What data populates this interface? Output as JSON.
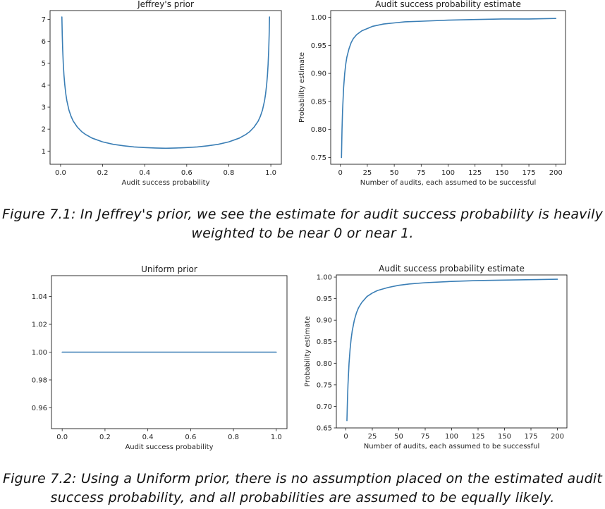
{
  "captions": {
    "fig1": "Figure 7.1: In Jeffrey's prior, we see the estimate for audit success probability is heavily weighted to be near 0 or near 1.",
    "fig2": "Figure 7.2: Using a Uniform prior, there is no assumption placed on the estimated audit success probability, and all probabilities are assumed to be equally likely."
  },
  "chart_data": [
    {
      "type": "line",
      "title": "Jeffrey's prior",
      "xlabel": "Audit success probability",
      "ylabel": "",
      "xlim": [
        -0.05,
        1.05
      ],
      "ylim": [
        0.4,
        7.4
      ],
      "xticks": [
        "0.0",
        "0.2",
        "0.4",
        "0.6",
        "0.8",
        "1.0"
      ],
      "yticks": [
        "1",
        "2",
        "3",
        "4",
        "5",
        "6",
        "7"
      ],
      "line_color": "#3a7eb5",
      "series": [
        {
          "x": [
            0.00625,
            0.008,
            0.01,
            0.013,
            0.016,
            0.02,
            0.025,
            0.03,
            0.04,
            0.05,
            0.06,
            0.08,
            0.1,
            0.12,
            0.15,
            0.2,
            0.25,
            0.3,
            0.35,
            0.4,
            0.45,
            0.5,
            0.55,
            0.6,
            0.65,
            0.7,
            0.75,
            0.8,
            0.85,
            0.88,
            0.9,
            0.92,
            0.94,
            0.95,
            0.96,
            0.97,
            0.975,
            0.98,
            0.984,
            0.987,
            0.99,
            0.992,
            0.99375
          ],
          "y": [
            7.11,
            6.29,
            5.63,
            4.95,
            4.47,
            4.02,
            3.6,
            3.29,
            2.86,
            2.58,
            2.37,
            2.09,
            1.89,
            1.75,
            1.59,
            1.42,
            1.31,
            1.24,
            1.19,
            1.16,
            1.14,
            1.13,
            1.14,
            1.16,
            1.19,
            1.24,
            1.31,
            1.42,
            1.59,
            1.75,
            1.89,
            2.09,
            2.37,
            2.58,
            2.86,
            3.29,
            3.6,
            4.02,
            4.47,
            4.95,
            5.63,
            6.29,
            7.11
          ]
        }
      ]
    },
    {
      "type": "line",
      "title": "Audit success probability estimate",
      "xlabel": "Number of audits, each assumed to be successful",
      "ylabel": "Probability estimate",
      "xlim": [
        -9,
        209
      ],
      "ylim": [
        0.738,
        1.012
      ],
      "xticks": [
        "0",
        "25",
        "50",
        "75",
        "100",
        "125",
        "150",
        "175",
        "200"
      ],
      "yticks": [
        "0.75",
        "0.80",
        "0.85",
        "0.90",
        "0.95",
        "1.00"
      ],
      "line_color": "#3a7eb5",
      "series": [
        {
          "x": [
            1,
            1.5,
            2,
            3,
            4,
            5,
            6,
            8,
            10,
            12,
            15,
            20,
            25,
            30,
            40,
            50,
            60,
            75,
            100,
            125,
            150,
            175,
            200
          ],
          "y": [
            0.75,
            0.8,
            0.833,
            0.875,
            0.9,
            0.917,
            0.929,
            0.944,
            0.955,
            0.962,
            0.969,
            0.976,
            0.98,
            0.984,
            0.988,
            0.99,
            0.992,
            0.993,
            0.995,
            0.996,
            0.997,
            0.997,
            0.998
          ]
        }
      ]
    },
    {
      "type": "line",
      "title": "Uniform prior",
      "xlabel": "Audit success probability",
      "ylabel": "",
      "xlim": [
        -0.05,
        1.05
      ],
      "ylim": [
        0.945,
        1.055
      ],
      "xticks": [
        "0.0",
        "0.2",
        "0.4",
        "0.6",
        "0.8",
        "1.0"
      ],
      "yticks": [
        "0.96",
        "0.98",
        "1.00",
        "1.02",
        "1.04"
      ],
      "line_color": "#3a7eb5",
      "series": [
        {
          "x": [
            0,
            1
          ],
          "y": [
            1.0,
            1.0
          ]
        }
      ]
    },
    {
      "type": "line",
      "title": "Audit success probability estimate",
      "xlabel": "Number of audits, each assumed to be successful",
      "ylabel": "Probability estimate",
      "xlim": [
        -9,
        209
      ],
      "ylim": [
        0.65,
        1.005
      ],
      "xticks": [
        "0",
        "25",
        "50",
        "75",
        "100",
        "125",
        "150",
        "175",
        "200"
      ],
      "yticks": [
        "0.65",
        "0.70",
        "0.75",
        "0.80",
        "0.85",
        "0.90",
        "0.95",
        "1.00"
      ],
      "line_color": "#3a7eb5",
      "series": [
        {
          "x": [
            1,
            1.5,
            2,
            3,
            4,
            5,
            6,
            8,
            10,
            12,
            15,
            20,
            25,
            30,
            40,
            50,
            60,
            75,
            100,
            125,
            150,
            175,
            200
          ],
          "y": [
            0.667,
            0.714,
            0.75,
            0.8,
            0.833,
            0.857,
            0.875,
            0.9,
            0.917,
            0.929,
            0.941,
            0.955,
            0.963,
            0.969,
            0.976,
            0.981,
            0.984,
            0.987,
            0.99,
            0.992,
            0.993,
            0.994,
            0.995
          ]
        }
      ]
    }
  ]
}
